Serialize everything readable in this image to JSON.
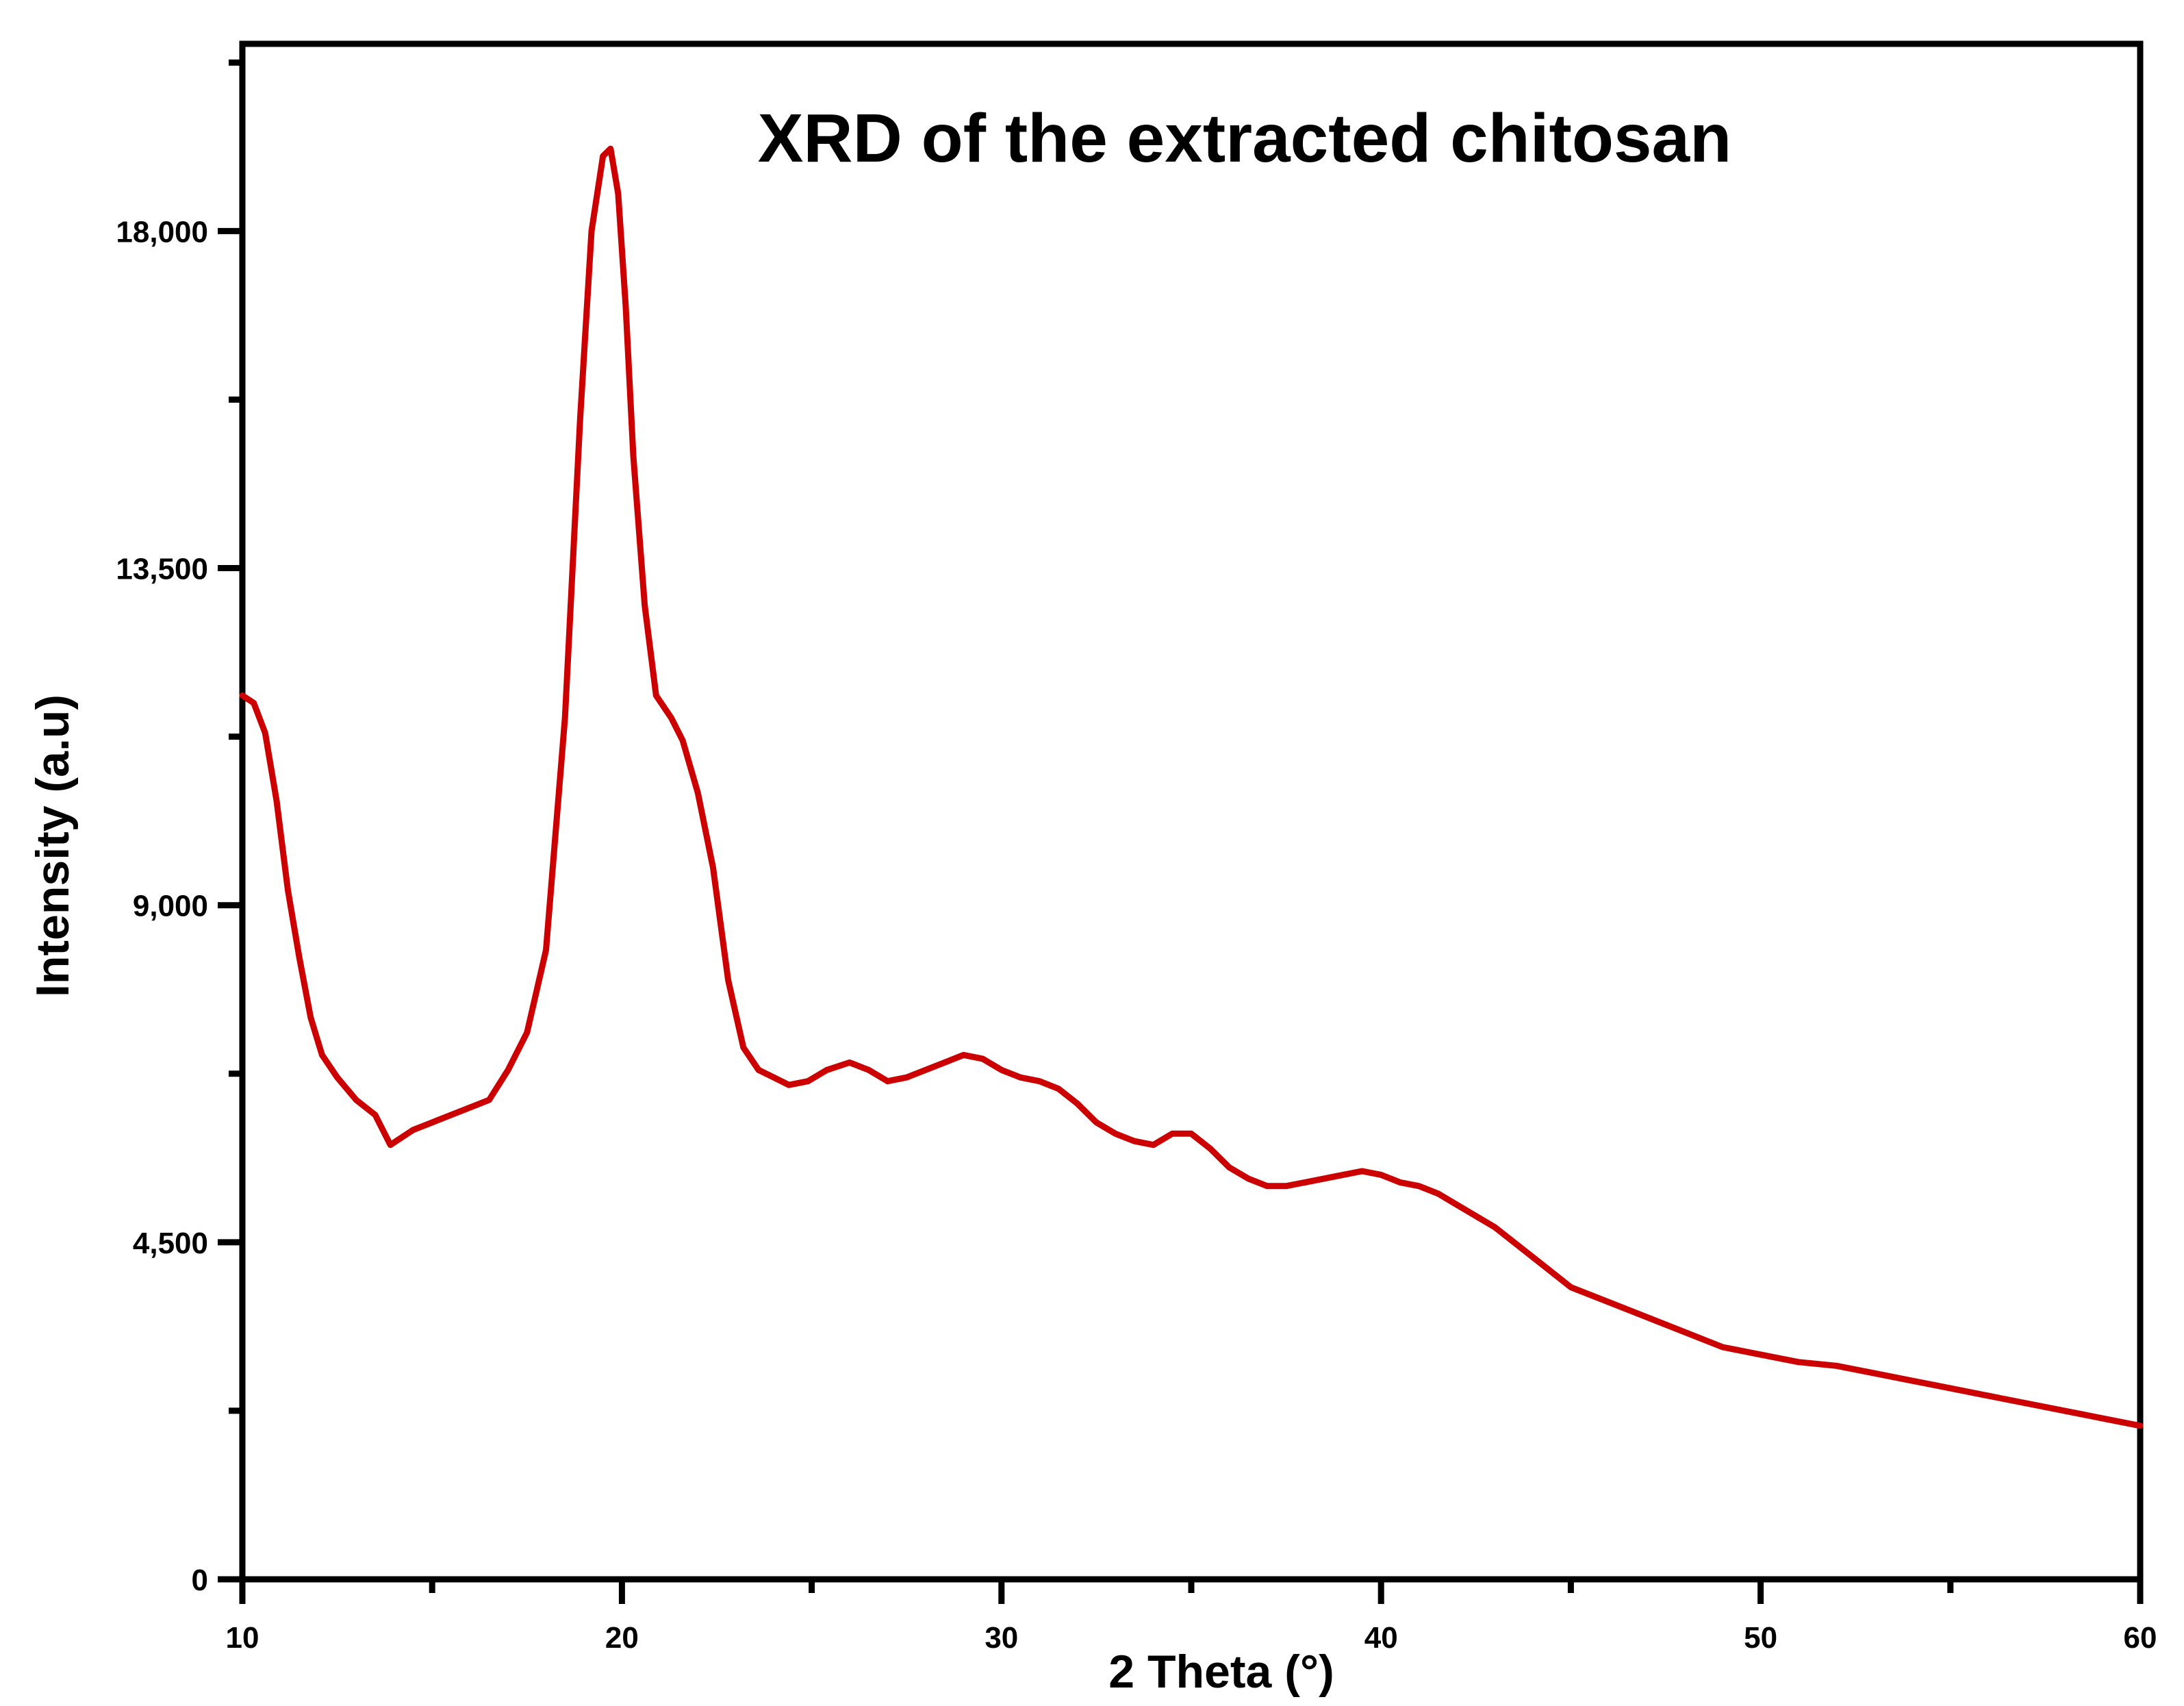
{
  "chart_data": {
    "type": "line",
    "title": "XRD of the extracted chitosan",
    "xlabel": "2 Theta (°)",
    "ylabel": "Intensity (a.u)",
    "xlim": [
      10,
      60
    ],
    "ylim": [
      0,
      20500
    ],
    "x_ticks": [
      10,
      20,
      30,
      40,
      50,
      60
    ],
    "x_tick_labels": [
      "10",
      "20",
      "30",
      "40",
      "50",
      "60"
    ],
    "y_ticks": [
      0,
      4500,
      9000,
      13500,
      18000
    ],
    "y_tick_labels": [
      "0",
      "4,500",
      "9,000",
      "13,500",
      "18,000"
    ],
    "grid": false,
    "legend": "none",
    "line_color": "#cc0000",
    "series": [
      {
        "x": [
          10.0,
          10.3,
          10.6,
          10.9,
          11.2,
          11.5,
          11.8,
          12.1,
          12.5,
          13.0,
          13.5,
          13.9,
          14.5,
          15.0,
          15.5,
          16.0,
          16.5,
          17.0,
          17.5,
          18.0,
          18.5,
          18.9,
          19.2,
          19.5,
          19.7,
          19.9,
          20.1,
          20.3,
          20.6,
          20.9,
          21.3,
          21.6,
          22.0,
          22.4,
          22.8,
          23.2,
          23.6,
          24.0,
          24.4,
          24.9,
          25.4,
          26.0,
          26.5,
          27.0,
          27.5,
          28.0,
          28.5,
          29.0,
          29.5,
          30.0,
          30.5,
          31.0,
          31.5,
          32.0,
          32.5,
          33.0,
          33.5,
          34.0,
          34.5,
          35.0,
          35.5,
          36.0,
          36.5,
          37.0,
          37.5,
          38.0,
          38.5,
          39.0,
          39.5,
          40.0,
          40.5,
          41.0,
          41.5,
          42.0,
          42.5,
          43.0,
          44.0,
          45.0,
          46.0,
          47.0,
          48.0,
          49.0,
          50.0,
          51.0,
          52.0,
          53.0,
          54.0,
          55.0,
          56.0,
          57.0,
          58.0,
          59.0,
          60.0
        ],
        "y": [
          11800,
          11700,
          11300,
          10400,
          9200,
          8300,
          7500,
          7000,
          6700,
          6400,
          6200,
          5800,
          6000,
          6100,
          6200,
          6300,
          6400,
          6800,
          7300,
          8400,
          11500,
          15500,
          18000,
          19000,
          19100,
          18500,
          17000,
          15000,
          13000,
          11800,
          11500,
          11200,
          10500,
          9500,
          8000,
          7100,
          6800,
          6700,
          6600,
          6650,
          6800,
          6900,
          6800,
          6650,
          6700,
          6800,
          6900,
          7000,
          6950,
          6800,
          6700,
          6650,
          6550,
          6350,
          6100,
          5950,
          5850,
          5800,
          5950,
          5950,
          5750,
          5500,
          5350,
          5250,
          5250,
          5300,
          5350,
          5400,
          5450,
          5400,
          5300,
          5250,
          5150,
          5000,
          4850,
          4700,
          4300,
          3900,
          3700,
          3500,
          3300,
          3100,
          3000,
          2900,
          2850,
          2750,
          2650,
          2550,
          2450,
          2350,
          2250,
          2150,
          2050
        ]
      }
    ]
  }
}
